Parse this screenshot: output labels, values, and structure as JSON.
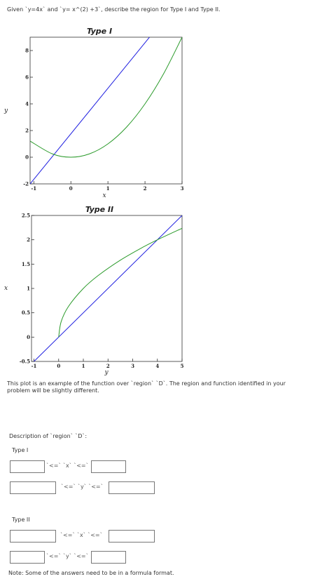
{
  "question": "Given `y=4x` and `y= x^(2) +3`, describe the region for Type I and Type II.",
  "chart_data": [
    {
      "type": "line",
      "title": "Type I",
      "xlabel": "x",
      "ylabel": "y",
      "xlim": [
        -1.1,
        3
      ],
      "ylim": [
        -2,
        9
      ],
      "xticks": [
        -1,
        0,
        1,
        2,
        3
      ],
      "yticks": [
        -2,
        0,
        2,
        4,
        6,
        8
      ],
      "series": [
        {
          "color": "#1f1fe0",
          "x": [
            -1.1,
            3
          ],
          "y": [
            -2,
            12
          ]
        },
        {
          "color": "#2a9a2a",
          "x": [
            -1.1,
            -0.5,
            0,
            0.5,
            1,
            1.5,
            2,
            2.5,
            3
          ],
          "y": [
            1.21,
            0.25,
            0,
            0.25,
            1,
            2.25,
            4,
            6.25,
            9
          ]
        }
      ]
    },
    {
      "type": "line",
      "title": "Type II",
      "xlabel": "y",
      "ylabel": "x",
      "xlim": [
        -1.1,
        5
      ],
      "ylim": [
        -0.5,
        2.5
      ],
      "xticks": [
        -1,
        0,
        1,
        2,
        3,
        4,
        5
      ],
      "yticks": [
        -0.5,
        0,
        0.5,
        1,
        1.5,
        2,
        2.5
      ],
      "series": [
        {
          "color": "#1f1fe0",
          "x": [
            -1.1,
            5
          ],
          "y": [
            -0.55,
            2.5
          ]
        },
        {
          "color": "#2a9a2a",
          "x": [
            0,
            0.1,
            0.4,
            1,
            1.6,
            2.5,
            3.4,
            4,
            5
          ],
          "y": [
            0,
            0.316,
            0.632,
            1,
            1.265,
            1.581,
            1.844,
            2,
            2.236
          ]
        }
      ]
    }
  ],
  "example_note": "This plot is an example of the function over `region` `D`. The region and function identified in your problem will be slightly different.",
  "description_label": "Description of `region` `D`:",
  "type1_label": "Type I",
  "type2_label": "Type II",
  "rel_lele_x": "`<=` `x` `<=`",
  "rel_lele_y": "`<=` `y` `<=`",
  "footer_note": "Note: Some of the answers need to be in a formula format."
}
